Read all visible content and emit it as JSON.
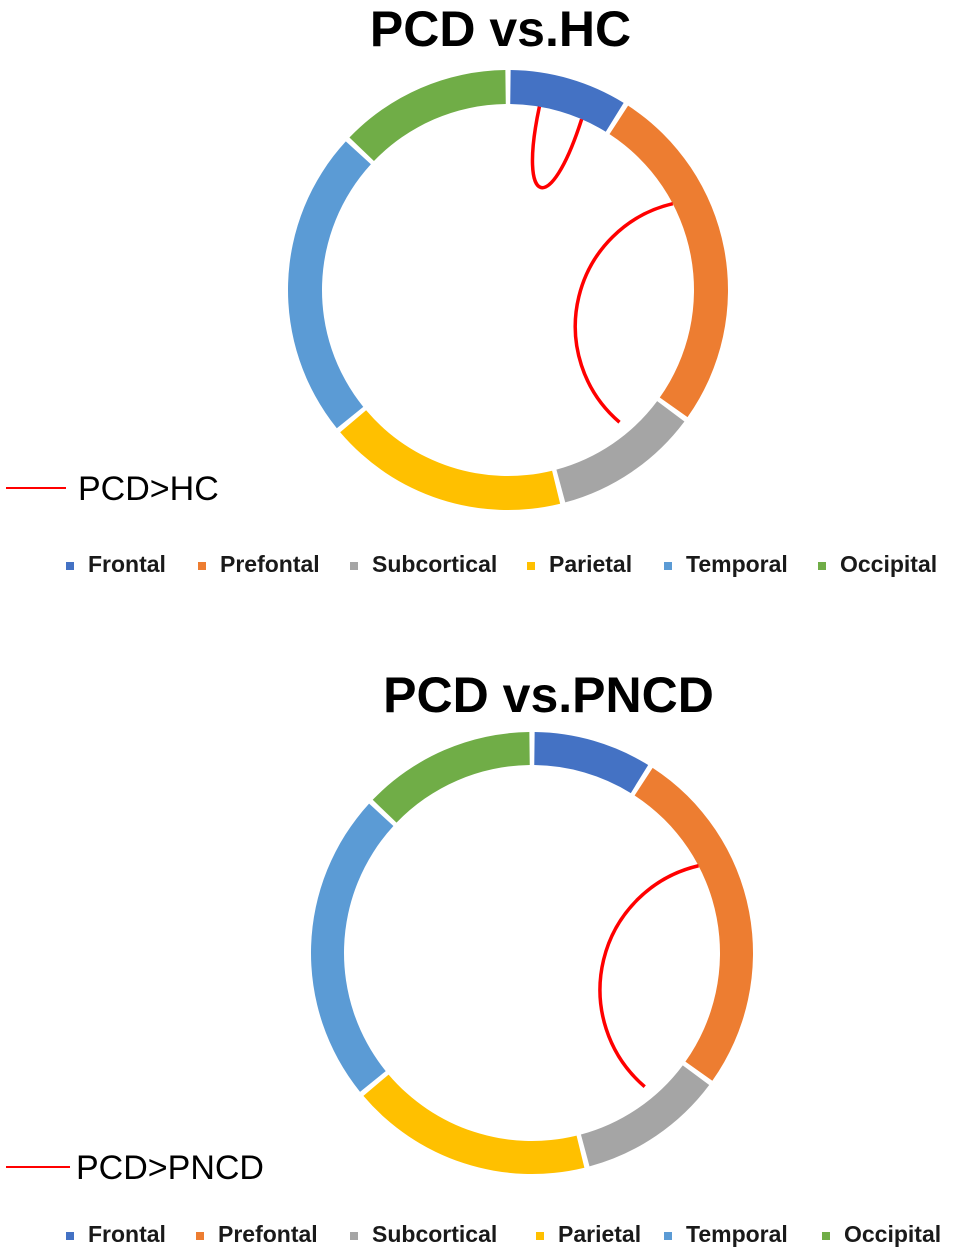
{
  "chart_data": [
    {
      "type": "chord",
      "title": "PCD vs.HC",
      "segments": [
        {
          "name": "Frontal",
          "fraction": 0.09,
          "color": "#4472C4"
        },
        {
          "name": "Prefontal",
          "fraction": 0.26,
          "color": "#ED7D31"
        },
        {
          "name": "Subcortical",
          "fraction": 0.11,
          "color": "#A5A5A5"
        },
        {
          "name": "Parietal",
          "fraction": 0.18,
          "color": "#FFC000"
        },
        {
          "name": "Temporal",
          "fraction": 0.23,
          "color": "#5B9BD5"
        },
        {
          "name": "Occipital",
          "fraction": 0.13,
          "color": "#70AD47"
        }
      ],
      "connections": [
        {
          "from": "Frontal",
          "to": "Frontal",
          "color": "#FF0000"
        },
        {
          "from": "Prefontal",
          "to": "Subcortical",
          "color": "#FF0000"
        }
      ],
      "connection_legend": {
        "label": "PCD>HC",
        "color": "#FF0000"
      },
      "legend": [
        "Frontal",
        "Prefontal",
        "Subcortical",
        "Parietal",
        "Temporal",
        "Occipital"
      ],
      "legend_placement": "bottom"
    },
    {
      "type": "chord",
      "title": "PCD vs.PNCD",
      "segments": [
        {
          "name": "Frontal",
          "fraction": 0.09,
          "color": "#4472C4"
        },
        {
          "name": "Prefontal",
          "fraction": 0.26,
          "color": "#ED7D31"
        },
        {
          "name": "Subcortical",
          "fraction": 0.11,
          "color": "#A5A5A5"
        },
        {
          "name": "Parietal",
          "fraction": 0.18,
          "color": "#FFC000"
        },
        {
          "name": "Temporal",
          "fraction": 0.23,
          "color": "#5B9BD5"
        },
        {
          "name": "Occipital",
          "fraction": 0.13,
          "color": "#70AD47"
        }
      ],
      "connections": [
        {
          "from": "Prefontal",
          "to": "Subcortical",
          "color": "#FF0000"
        }
      ],
      "connection_legend": {
        "label": "PCD>PNCD",
        "color": "#FF0000"
      },
      "legend": [
        "Frontal",
        "Prefontal",
        "Subcortical",
        "Parietal",
        "Temporal",
        "Occipital"
      ],
      "legend_placement": "bottom"
    }
  ]
}
